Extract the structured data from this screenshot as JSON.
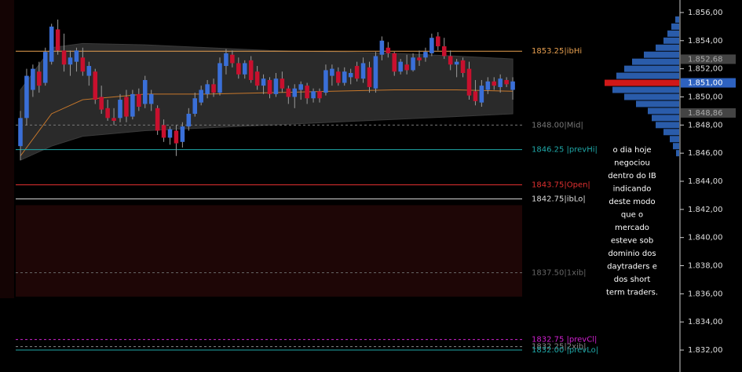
{
  "chart_data": {
    "type": "candlestick",
    "ylim": [
      1830.44,
      1856.89
    ],
    "yticks": [
      {
        "value": 1832,
        "label": "1.832,00"
      },
      {
        "value": 1834,
        "label": "1.834,00"
      },
      {
        "value": 1836,
        "label": "1.836,00"
      },
      {
        "value": 1838,
        "label": "1.838,00"
      },
      {
        "value": 1840,
        "label": "1.840,00"
      },
      {
        "value": 1842,
        "label": "1.842,00"
      },
      {
        "value": 1844,
        "label": "1.844,00"
      },
      {
        "value": 1846,
        "label": "1.846,00"
      },
      {
        "value": 1848,
        "label": "1.848,00"
      },
      {
        "value": 1850,
        "label": "1.850,00"
      },
      {
        "value": 1852,
        "label": "1.852,00"
      },
      {
        "value": 1854,
        "label": "1.854,00"
      },
      {
        "value": 1856,
        "label": "1.856,00"
      }
    ],
    "up_color": "#3a6fd8",
    "down_color": "#c8102e",
    "open": [
      1846.5,
      1848.5,
      1850.5,
      1851.8,
      1851,
      1852.5,
      1854.8,
      1853.3,
      1852.3,
      1852.5,
      1852.8,
      1851.5,
      1851.8,
      1850,
      1849.2,
      1848.5,
      1848.5,
      1850,
      1848.6,
      1850.2,
      1849.5,
      1849.5,
      1849.2,
      1848,
      1847.1,
      1847.6,
      1846.8,
      1847.9,
      1848.8,
      1849.6,
      1850.2,
      1850.9,
      1850.3,
      1852.2,
      1853,
      1852.4,
      1851.6,
      1852.6,
      1851.8,
      1850.8,
      1851.2,
      1850.2,
      1851.3,
      1850.6,
      1850,
      1850.5,
      1850.8,
      1849.9,
      1850.4,
      1850.3,
      1851.5,
      1851.8,
      1851,
      1851.4,
      1852.2,
      1851.3,
      1852.1,
      1850.6,
      1853,
      1853.5,
      1853.1,
      1851.8,
      1852.3,
      1851.9,
      1852.8,
      1852.8,
      1853.1,
      1854.3,
      1853.6,
      1852.9,
      1852.3,
      1852.6,
      1852,
      1850.4,
      1849.6,
      1850.5,
      1851.1,
      1850.7,
      1851.2,
      1850.5
    ],
    "high": [
      1849,
      1852,
      1852.3,
      1852.5,
      1853.5,
      1855.2,
      1855.5,
      1854.5,
      1853.3,
      1853.5,
      1853.5,
      1852.5,
      1852,
      1850.8,
      1849.8,
      1849.2,
      1850.2,
      1850.5,
      1850.5,
      1850.6,
      1851.5,
      1850.5,
      1849.4,
      1848.4,
      1847.9,
      1848,
      1848.2,
      1849.2,
      1850.3,
      1850.8,
      1851.2,
      1851.3,
      1852.8,
      1853.4,
      1853.3,
      1852.8,
      1852.6,
      1852.9,
      1852.2,
      1851.6,
      1851.4,
      1851.7,
      1851.8,
      1850.8,
      1850.9,
      1851.1,
      1851,
      1850.6,
      1850.6,
      1852.3,
      1852.3,
      1852.1,
      1852.1,
      1852,
      1852.5,
      1852.8,
      1852.5,
      1853.2,
      1854.3,
      1853.9,
      1853.2,
      1852.7,
      1853,
      1853.1,
      1853.3,
      1853.5,
      1854.5,
      1854.6,
      1854.2,
      1853.3,
      1852.7,
      1852.8,
      1852.5,
      1851.2,
      1851.2,
      1851.4,
      1851.4,
      1851.6,
      1851.4,
      1851.4
    ],
    "low": [
      1845.5,
      1848,
      1850,
      1850.3,
      1850.8,
      1852.3,
      1853,
      1851.8,
      1851.5,
      1851.8,
      1851.5,
      1850.8,
      1849.5,
      1848.8,
      1848.3,
      1848,
      1848.2,
      1848.2,
      1848.4,
      1849,
      1849.2,
      1849,
      1847.3,
      1846.8,
      1846.6,
      1845.8,
      1846.4,
      1847.6,
      1848.6,
      1849.4,
      1849.9,
      1850,
      1850.1,
      1851.6,
      1852.1,
      1851.3,
      1851.3,
      1851,
      1850.5,
      1850.2,
      1849.9,
      1850,
      1850.3,
      1849.5,
      1849.2,
      1849.8,
      1849.5,
      1849.6,
      1849.6,
      1850.1,
      1850.8,
      1850.8,
      1850.8,
      1850.9,
      1851.1,
      1851,
      1850.3,
      1850.3,
      1852.6,
      1852.8,
      1851.5,
      1851.6,
      1851.6,
      1851.8,
      1852.2,
      1852.5,
      1852.9,
      1853.3,
      1852.7,
      1851.9,
      1851.4,
      1851.4,
      1849.8,
      1849.4,
      1849.3,
      1850.2,
      1850.5,
      1850.3,
      1850.7,
      1849.8
    ],
    "close": [
      1848.5,
      1851.5,
      1852,
      1850.8,
      1853.2,
      1855,
      1853.3,
      1852.3,
      1852.8,
      1853.3,
      1851.8,
      1852.2,
      1849.8,
      1849.1,
      1848.5,
      1848.3,
      1849.8,
      1848.6,
      1850.2,
      1849.3,
      1851.2,
      1850.2,
      1847.6,
      1847.1,
      1847.7,
      1846.7,
      1847.9,
      1848.8,
      1849.9,
      1850.5,
      1850.9,
      1850.3,
      1852.4,
      1853.1,
      1852.4,
      1851.6,
      1852.4,
      1851.2,
      1850.8,
      1851.3,
      1850.2,
      1851.3,
      1850.6,
      1850,
      1850.6,
      1850.9,
      1849.9,
      1850.4,
      1849.9,
      1851.9,
      1852,
      1851,
      1851.8,
      1851.7,
      1851.3,
      1852.4,
      1850.7,
      1852.9,
      1854,
      1853.1,
      1851.8,
      1852.5,
      1851.9,
      1852.8,
      1852.6,
      1853.2,
      1854.2,
      1853.6,
      1852.9,
      1852.3,
      1852.5,
      1851.7,
      1850.1,
      1849.7,
      1850.8,
      1851.1,
      1850.8,
      1851.3,
      1850.9,
      1851.1
    ],
    "band": {
      "fill": "#2a2a2a",
      "mid_color": "#c8782a",
      "x": [
        0,
        5,
        10,
        20,
        30,
        40,
        50,
        60,
        70,
        79
      ],
      "upper": [
        1850.5,
        1853.5,
        1853.8,
        1853.7,
        1853.5,
        1853.3,
        1853.2,
        1853.1,
        1852.9,
        1852.7
      ],
      "lower": [
        1845.5,
        1846.5,
        1847.2,
        1847.6,
        1847.8,
        1848.0,
        1848.2,
        1848.4,
        1848.6,
        1848.8
      ],
      "mid": [
        1845.8,
        1848.8,
        1849.8,
        1850.2,
        1850.2,
        1850.3,
        1850.4,
        1850.5,
        1850.5,
        1850.4
      ]
    },
    "zone": {
      "from": 1835.8,
      "to": 1842.3,
      "color": "#1e0606"
    },
    "levels": [
      {
        "value": 1853.25,
        "label": "1853.25|ibHi",
        "color": "#e8a050",
        "dashed": false
      },
      {
        "value": 1848,
        "label": "1848.00|Mid|",
        "color": "#777777",
        "dashed": true
      },
      {
        "value": 1846.25,
        "label": "1846.25 |prevHi|",
        "color": "#1fa8a8",
        "dashed": false
      },
      {
        "value": 1843.75,
        "label": "1843.75|Open|",
        "color": "#e03030",
        "dashed": false
      },
      {
        "value": 1842.75,
        "label": "1842.75|ibLo|",
        "color": "#dddddd",
        "dashed": false
      },
      {
        "value": 1837.5,
        "label": "1837.50|1xib|",
        "color": "#666666",
        "dashed": true
      },
      {
        "value": 1832.75,
        "label": "1832.75 |prevCl|",
        "color": "#d020d0",
        "dashed": true
      },
      {
        "value": 1832.25,
        "label": "1832.25|2xib|",
        "color": "#888888",
        "dashed": true
      },
      {
        "value": 1832,
        "label": "1832.00 |prevLo|",
        "color": "#1fa8a8",
        "dashed": false
      }
    ],
    "profile": {
      "color": "#2a5caa",
      "poc_color": "#d01818",
      "prices": [
        1846,
        1846.5,
        1847,
        1847.5,
        1848,
        1848.5,
        1849,
        1849.5,
        1850,
        1850.5,
        1851,
        1851.5,
        1852,
        1852.5,
        1853,
        1853.5,
        1854,
        1854.5,
        1855,
        1855.5
      ],
      "values": [
        4,
        8,
        12,
        20,
        30,
        35,
        40,
        55,
        70,
        85,
        95,
        80,
        70,
        60,
        45,
        30,
        20,
        15,
        10,
        5
      ]
    },
    "axis_markers": [
      {
        "value": 1852.68,
        "label": "1.852,68",
        "color": "#444444"
      },
      {
        "value": 1851,
        "label": "1.851,00",
        "color": "#2e62c0"
      },
      {
        "value": 1848.86,
        "label": "1.848,86",
        "color": "#444444"
      }
    ],
    "annotation": [
      "o dia hoje",
      "negociou",
      "dentro do IB",
      "indicando",
      "deste modo",
      "que o",
      "mercado",
      "esteve sob",
      "dominio dos",
      "daytraders e",
      "dos short",
      "term traders."
    ]
  }
}
